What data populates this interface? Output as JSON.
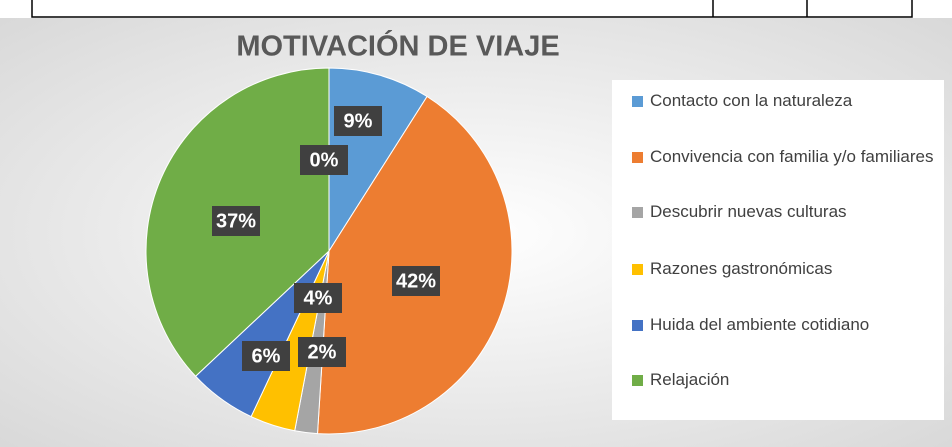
{
  "chart_data": {
    "type": "pie",
    "title": "MOTIVACIÓN DE VIAJE",
    "categories": [
      "Contacto con la naturaleza",
      "Convivencia con familia y/o familiares",
      "Descubrir nuevas culturas",
      "Razones gastronómicas",
      "Huida del ambiente cotidiano",
      "Relajación",
      null
    ],
    "values": [
      9,
      42,
      2,
      4,
      6,
      37,
      0
    ],
    "value_labels": [
      "9%",
      "42%",
      "2%",
      "4%",
      "6%",
      "37%",
      "0%"
    ],
    "colors": [
      "#5b9bd5",
      "#ed7d31",
      "#a5a5a5",
      "#ffc000",
      "#4472c4",
      "#70ad47",
      "#9e480e"
    ],
    "legend": "right"
  }
}
